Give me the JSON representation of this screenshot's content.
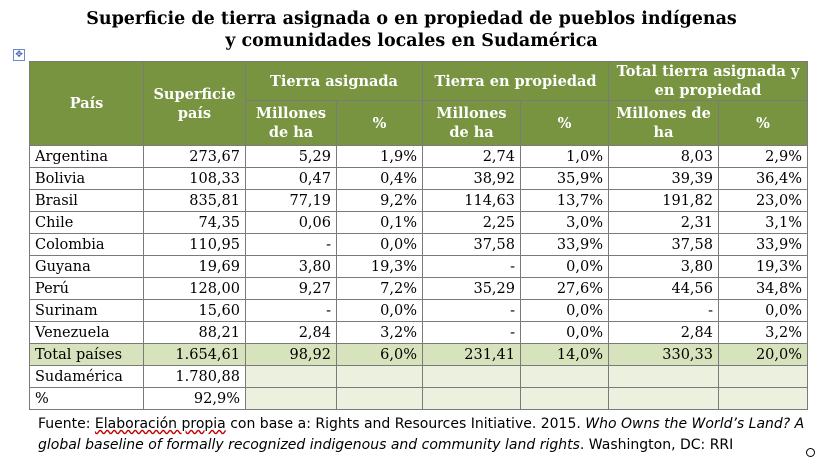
{
  "title": {
    "line1": "Superficie de tierra asignada o en propiedad de pueblos indígenas",
    "line2": "y comunidades locales en Sudamérica"
  },
  "headers": {
    "pais": "País",
    "superficie": "Superficie país",
    "asignada": "Tierra asignada",
    "propiedad": "Tierra en propiedad",
    "total": "Total tierra asignada y en propiedad",
    "millones": "Millones de ha",
    "pct": "%"
  },
  "rows": [
    {
      "pais": "Argentina",
      "sup": "273,67",
      "a_mha": "5,29",
      "a_pct": "1,9%",
      "p_mha": "2,74",
      "p_pct": "1,0%",
      "t_mha": "8,03",
      "t_pct": "2,9%"
    },
    {
      "pais": "Bolivia",
      "sup": "108,33",
      "a_mha": "0,47",
      "a_pct": "0,4%",
      "p_mha": "38,92",
      "p_pct": "35,9%",
      "t_mha": "39,39",
      "t_pct": "36,4%"
    },
    {
      "pais": "Brasil",
      "sup": "835,81",
      "a_mha": "77,19",
      "a_pct": "9,2%",
      "p_mha": "114,63",
      "p_pct": "13,7%",
      "t_mha": "191,82",
      "t_pct": "23,0%"
    },
    {
      "pais": "Chile",
      "sup": "74,35",
      "a_mha": "0,06",
      "a_pct": "0,1%",
      "p_mha": "2,25",
      "p_pct": "3,0%",
      "t_mha": "2,31",
      "t_pct": "3,1%"
    },
    {
      "pais": "Colombia",
      "sup": "110,95",
      "a_mha": "-",
      "a_pct": "0,0%",
      "p_mha": "37,58",
      "p_pct": "33,9%",
      "t_mha": "37,58",
      "t_pct": "33,9%"
    },
    {
      "pais": "Guyana",
      "sup": "19,69",
      "a_mha": "3,80",
      "a_pct": "19,3%",
      "p_mha": "-",
      "p_pct": "0,0%",
      "t_mha": "3,80",
      "t_pct": "19,3%"
    },
    {
      "pais": "Perú",
      "sup": "128,00",
      "a_mha": "9,27",
      "a_pct": "7,2%",
      "p_mha": "35,29",
      "p_pct": "27,6%",
      "t_mha": "44,56",
      "t_pct": "34,8%"
    },
    {
      "pais": "Surinam",
      "sup": "15,60",
      "a_mha": "-",
      "a_pct": "0,0%",
      "p_mha": "-",
      "p_pct": "0,0%",
      "t_mha": "-",
      "t_pct": "0,0%"
    },
    {
      "pais": "Venezuela",
      "sup": "88,21",
      "a_mha": "2,84",
      "a_pct": "3,2%",
      "p_mha": "-",
      "p_pct": "0,0%",
      "t_mha": "2,84",
      "t_pct": "3,2%"
    }
  ],
  "total": {
    "pais": "Total países",
    "sup": "1.654,61",
    "a_mha": "98,92",
    "a_pct": "6,0%",
    "p_mha": "231,41",
    "p_pct": "14,0%",
    "t_mha": "330,33",
    "t_pct": "20,0%"
  },
  "sudamerica": {
    "label": "Sudamérica",
    "value": "1.780,88"
  },
  "percent": {
    "label": "%",
    "value": "92,9%"
  },
  "source": {
    "prefix": "Fuente: ",
    "underlined": "Elaboración propia",
    "mid": " con base a: Rights and Resources Initiative. 2015. ",
    "italic": "Who Owns the World’s Land? A global baseline of formally recognized indigenous and community land rights",
    "suffix": ". Washington, DC: RRI"
  },
  "icons": {
    "table_handle": "move-cross-icon",
    "end_mark": "end-of-cell-mark-icon"
  }
}
